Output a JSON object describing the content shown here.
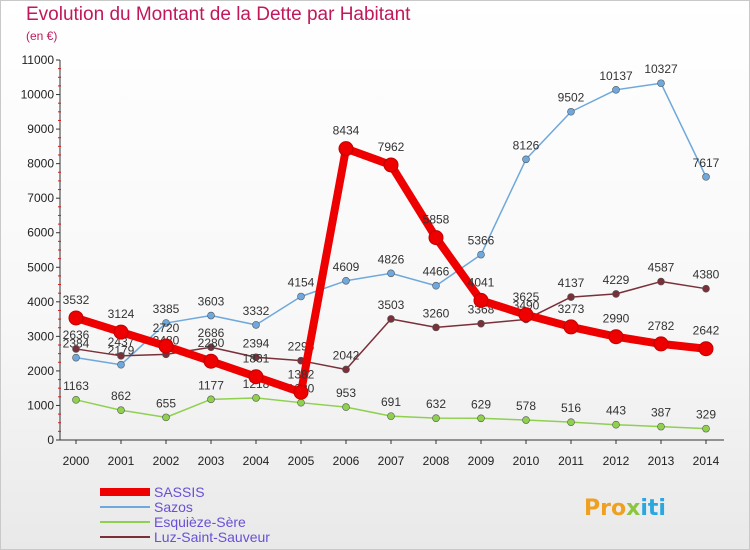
{
  "header": {
    "title": "Evolution du Montant de la Dette par Habitant",
    "unit": "(en €)"
  },
  "logo": {
    "letters": [
      "P",
      "r",
      "o",
      "x",
      "i",
      "t",
      "i"
    ],
    "colors": [
      "#f0a020",
      "#f0a020",
      "#f0a020",
      "#8cc63f",
      "#29a8e0",
      "#29a8e0",
      "#29a8e0"
    ]
  },
  "chart_data": {
    "type": "line",
    "x": [
      "2000",
      "2001",
      "2002",
      "2003",
      "2004",
      "2005",
      "2006",
      "2007",
      "2008",
      "2009",
      "2010",
      "2011",
      "2012",
      "2013",
      "2014"
    ],
    "ylim": [
      0,
      11000
    ],
    "yticks": [
      0,
      1000,
      2000,
      3000,
      4000,
      5000,
      6000,
      7000,
      8000,
      9000,
      10000,
      11000
    ],
    "grid": false,
    "legend_position": "bottom-left",
    "series": [
      {
        "name": "SASSIS",
        "color": "#ee0000",
        "values": [
          3532,
          3124,
          2720,
          2280,
          1831,
          1382,
          8434,
          7962,
          5858,
          4041,
          3625,
          3273,
          2990,
          2782,
          2642
        ]
      },
      {
        "name": "Sazos",
        "color": "#6fa8dc",
        "values": [
          2384,
          2179,
          3385,
          3603,
          3332,
          4154,
          4609,
          4826,
          4466,
          5366,
          8126,
          9502,
          10137,
          10327,
          7617
        ]
      },
      {
        "name": "Esquièze-Sère",
        "color": "#8fd04f",
        "values": [
          1163,
          862,
          655,
          1177,
          1218,
          1080,
          953,
          691,
          632,
          629,
          578,
          516,
          443,
          387,
          329
        ]
      },
      {
        "name": "Luz-Saint-Sauveur",
        "color": "#7a3038",
        "values": [
          2636,
          2437,
          2480,
          2686,
          2394,
          2296,
          2042,
          3503,
          3260,
          3368,
          3490,
          4137,
          4229,
          4587,
          4380
        ]
      }
    ]
  }
}
